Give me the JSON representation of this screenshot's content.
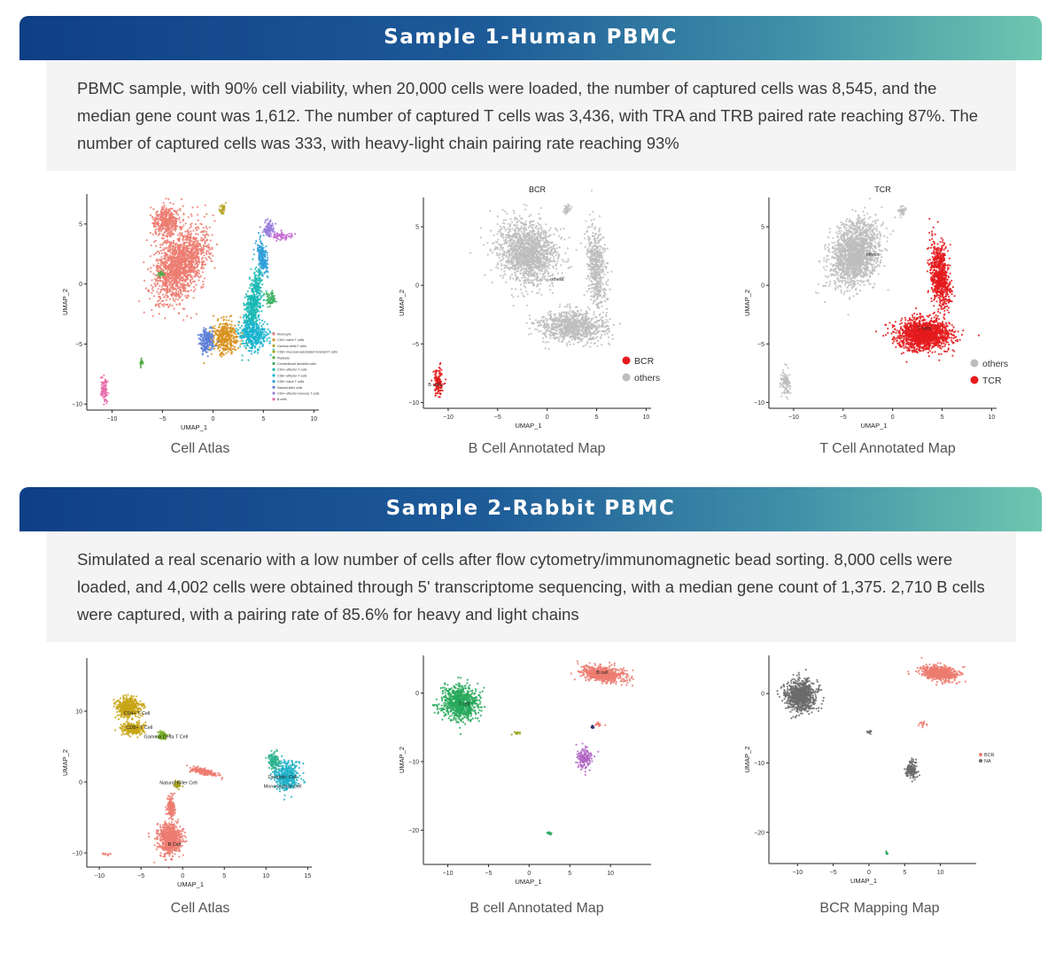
{
  "sample1": {
    "title": "Sample 1-Human PBMC",
    "description": "PBMC sample, with 90% cell viability, when 20,000 cells were loaded, the number of captured cells was 8,545, and the median gene count was 1,612. The number of captured T cells was 3,436, with TRA and TRB paired rate reaching 87%. The number of captured cells was 333, with heavy-light chain pairing rate reaching 93%"
  },
  "sample2": {
    "title": "Sample 2-Rabbit PBMC",
    "description": "Simulated a real scenario with a low number of cells after flow cytometry/immunomagnetic bead sorting. 8,000 cells were loaded, and 4,002 cells were obtained through 5' transcriptome sequencing, with a median gene count of 1,375. 2,710 B cells were captured, with a pairing rate of 85.6% for heavy and light chains"
  },
  "chart_data": [
    {
      "id": "s1-atlas",
      "type": "scatter",
      "title": "",
      "caption": "Cell Atlas",
      "xlabel": "UMAP_1",
      "ylabel": "UMAP_2",
      "xlim": [
        -12.5,
        10.5
      ],
      "ylim": [
        -10.5,
        7.5
      ],
      "xticks": [
        -10,
        -5,
        0,
        5,
        10
      ],
      "yticks": [
        -10,
        -5,
        0,
        5
      ],
      "legend_position": "right-inside",
      "legend": [
        "Monocyte",
        "CD4+ naive T cells",
        "Gamma delta T cells",
        "CD8+ mucosal-associated invariant T cells",
        "Platelets",
        "Conventional dendritic cells",
        "CD4+ effector T cells",
        "CD8+ effector T cells",
        "CD8+ naive T cells",
        "Natural killer cells",
        "CD4+ effector memory T cells",
        "B cells"
      ],
      "clusters": [
        {
          "name": "Monocyte",
          "color": "#ec7b70",
          "cx": -3.2,
          "cy": 1.6,
          "sx": 1.9,
          "sy": 3.0,
          "angle": -38,
          "n": 1500
        },
        {
          "name": "Monocyte top",
          "color": "#ec7b70",
          "cx": -4.6,
          "cy": 5.2,
          "sx": 1.2,
          "sy": 1.2,
          "angle": 0,
          "n": 400
        },
        {
          "name": "CD4+ naive T cells",
          "color": "#d8901c",
          "cx": 1.2,
          "cy": -4.4,
          "sx": 1.2,
          "sy": 1.3,
          "angle": 0,
          "n": 380
        },
        {
          "name": "Gamma delta T cells",
          "color": "#b9a72b",
          "cx": 1.0,
          "cy": 6.2,
          "sx": 0.25,
          "sy": 0.4,
          "angle": 0,
          "n": 40
        },
        {
          "name": "Platelets",
          "color": "#4ea641",
          "cx": -5.1,
          "cy": 0.8,
          "sx": 0.3,
          "sy": 0.2,
          "angle": 0,
          "n": 20
        },
        {
          "name": "CD8+ effector T cells",
          "color": "#19b8b3",
          "cx": 4.0,
          "cy": -1.6,
          "sx": 0.7,
          "sy": 2.5,
          "angle": -10,
          "n": 500
        },
        {
          "name": "CD8+ naive T cells",
          "color": "#1ab4cf",
          "cx": 4.0,
          "cy": -4.2,
          "sx": 1.3,
          "sy": 1.0,
          "angle": 0,
          "n": 380
        },
        {
          "name": "Natural killer cells",
          "color": "#2f9fd8",
          "cx": 4.9,
          "cy": 2.3,
          "sx": 0.4,
          "sy": 1.2,
          "angle": 10,
          "n": 200
        },
        {
          "name": "CD4+ effector memory T cells",
          "color": "#5c7fd6",
          "cx": -0.6,
          "cy": -4.7,
          "sx": 0.6,
          "sy": 0.9,
          "angle": 0,
          "n": 200
        },
        {
          "name": "B cells",
          "color": "#9a7ddc",
          "cx": 5.5,
          "cy": 4.6,
          "sx": 0.5,
          "sy": 0.6,
          "angle": 0,
          "n": 90
        },
        {
          "name": "B cells b",
          "color": "#c46fd2",
          "cx": 6.8,
          "cy": 4.0,
          "sx": 1.0,
          "sy": 0.3,
          "angle": 0,
          "n": 70
        },
        {
          "name": "Pink",
          "color": "#e86aa9",
          "cx": -10.8,
          "cy": -8.7,
          "sx": 0.3,
          "sy": 0.9,
          "angle": 0,
          "n": 90
        },
        {
          "name": "Green small",
          "color": "#4ea641",
          "cx": -7.1,
          "cy": -6.6,
          "sx": 0.2,
          "sy": 0.3,
          "angle": 0,
          "n": 20
        },
        {
          "name": "Green mid",
          "color": "#3bb05f",
          "cx": 5.7,
          "cy": -1.2,
          "sx": 0.4,
          "sy": 0.5,
          "angle": 0,
          "n": 60
        }
      ],
      "cluster_labels": []
    },
    {
      "id": "s1-bcr",
      "type": "scatter",
      "title": "BCR",
      "caption": "B Cell Annotated Map",
      "xlabel": "UMAP_1",
      "ylabel": "UMAP_2",
      "xlim": [
        -12.5,
        10.5
      ],
      "ylim": [
        -10.5,
        7.5
      ],
      "xticks": [
        -10,
        -5,
        0,
        5,
        10
      ],
      "yticks": [
        -10,
        -5,
        0,
        5
      ],
      "legend_position": "right",
      "legend": [
        "BCR",
        "others"
      ],
      "legend_colors": [
        "#e41a1c",
        "#bdbdbd"
      ],
      "clusters": [
        {
          "name": "others",
          "color": "#bdbdbd",
          "cx": -2.0,
          "cy": 2.8,
          "sx": 2.8,
          "sy": 2.3,
          "angle": -30,
          "n": 1500
        },
        {
          "name": "others",
          "color": "#bdbdbd",
          "cx": 2.5,
          "cy": -3.5,
          "sx": 3.0,
          "sy": 1.2,
          "angle": 0,
          "n": 900
        },
        {
          "name": "others",
          "color": "#bdbdbd",
          "cx": 5.0,
          "cy": 1.5,
          "sx": 0.8,
          "sy": 3.0,
          "angle": 5,
          "n": 500
        },
        {
          "name": "others",
          "color": "#bdbdbd",
          "cx": 2.0,
          "cy": 6.5,
          "sx": 0.3,
          "sy": 0.4,
          "angle": 0,
          "n": 40
        },
        {
          "name": "BCR",
          "color": "#e41a1c",
          "cx": -11.0,
          "cy": -8.3,
          "sx": 0.4,
          "sy": 1.0,
          "angle": 0,
          "n": 120
        }
      ],
      "cluster_labels": [
        {
          "text": "others",
          "x": 1.0,
          "y": 0.4
        },
        {
          "text": "B cells",
          "x": -11.3,
          "y": -8.6
        }
      ]
    },
    {
      "id": "s1-tcr",
      "type": "scatter",
      "title": "TCR",
      "caption": "T Cell Annotated Map",
      "xlabel": "UMAP_1",
      "ylabel": "UMAP_2",
      "xlim": [
        -12.5,
        10.5
      ],
      "ylim": [
        -10.5,
        7.5
      ],
      "xticks": [
        -10,
        -5,
        0,
        5,
        10
      ],
      "yticks": [
        -10,
        -5,
        0,
        5
      ],
      "legend_position": "right",
      "legend": [
        "others",
        "TCR"
      ],
      "legend_colors": [
        "#bdbdbd",
        "#e41a1c"
      ],
      "clusters": [
        {
          "name": "others",
          "color": "#bdbdbd",
          "cx": -3.8,
          "cy": 2.7,
          "sx": 2.0,
          "sy": 2.7,
          "angle": -35,
          "n": 1700
        },
        {
          "name": "others",
          "color": "#bdbdbd",
          "cx": -10.8,
          "cy": -8.3,
          "sx": 0.4,
          "sy": 1.0,
          "angle": 0,
          "n": 100
        },
        {
          "name": "others",
          "color": "#bdbdbd",
          "cx": 1.0,
          "cy": 6.4,
          "sx": 0.3,
          "sy": 0.4,
          "angle": 0,
          "n": 40
        },
        {
          "name": "TCR",
          "color": "#e41a1c",
          "cx": 3.2,
          "cy": -4.2,
          "sx": 2.4,
          "sy": 1.2,
          "angle": 0,
          "n": 1400
        },
        {
          "name": "TCR",
          "color": "#e41a1c",
          "cx": 4.8,
          "cy": 0.8,
          "sx": 0.9,
          "sy": 2.6,
          "angle": 8,
          "n": 700
        }
      ],
      "cluster_labels": [
        {
          "text": "others",
          "x": -2.0,
          "y": 2.5
        },
        {
          "text": "T cells",
          "x": 3.2,
          "y": -3.8
        }
      ]
    },
    {
      "id": "s2-atlas",
      "type": "scatter",
      "title": "",
      "caption": "Cell Atlas",
      "xlabel": "UMAP_1",
      "ylabel": "UMAP_2",
      "xlim": [
        -11.5,
        15.5
      ],
      "ylim": [
        -12,
        17.5
      ],
      "xticks": [
        -10,
        -5,
        0,
        5,
        10,
        15
      ],
      "yticks": [
        -10,
        0,
        10
      ],
      "legend_position": "none",
      "legend": [],
      "clusters": [
        {
          "name": "CD4 T",
          "color": "#c8a616",
          "cx": -6.5,
          "cy": 10.5,
          "sx": 1.3,
          "sy": 1.3,
          "angle": 0,
          "n": 450
        },
        {
          "name": "CD8 T",
          "color": "#c8a616",
          "cx": -6.0,
          "cy": 7.5,
          "sx": 1.2,
          "sy": 0.8,
          "angle": 0,
          "n": 260
        },
        {
          "name": "Gd T",
          "color": "#7ab02c",
          "cx": -2.5,
          "cy": 6.5,
          "sx": 0.6,
          "sy": 0.5,
          "angle": 0,
          "n": 90
        },
        {
          "name": "B cell",
          "color": "#ec7b70",
          "cx": -1.5,
          "cy": -8.0,
          "sx": 1.3,
          "sy": 2.0,
          "angle": 0,
          "n": 700
        },
        {
          "name": "B cell upper",
          "color": "#ec7b70",
          "cx": -1.4,
          "cy": -3.5,
          "sx": 0.4,
          "sy": 1.3,
          "angle": 0,
          "n": 150
        },
        {
          "name": "B cell arm",
          "color": "#ec7b70",
          "cx": 2.5,
          "cy": 1.5,
          "sx": 1.5,
          "sy": 0.4,
          "angle": -15,
          "n": 160
        },
        {
          "name": "NK",
          "color": "#a6a01c",
          "cx": -0.6,
          "cy": -0.3,
          "sx": 0.4,
          "sy": 0.5,
          "angle": 0,
          "n": 40
        },
        {
          "name": "DC Mono",
          "color": "#1fb0c8",
          "cx": 12.5,
          "cy": 0.8,
          "sx": 1.3,
          "sy": 1.7,
          "angle": 0,
          "n": 400
        },
        {
          "name": "DC Mono green",
          "color": "#2db38e",
          "cx": 11.0,
          "cy": 3.0,
          "sx": 0.6,
          "sy": 1.2,
          "angle": 0,
          "n": 110
        },
        {
          "name": "stray",
          "color": "#ec7b70",
          "cx": -9.2,
          "cy": -10.2,
          "sx": 0.6,
          "sy": 0.2,
          "angle": 0,
          "n": 10
        }
      ],
      "cluster_labels": [
        {
          "text": "CD4+ T Cell",
          "x": -5.5,
          "y": 9.5
        },
        {
          "text": "CD8+ T Cell",
          "x": -5.2,
          "y": 7.5
        },
        {
          "text": "Gamma Delta T Cell",
          "x": -2.0,
          "y": 6.2
        },
        {
          "text": "Natural Killer Cell",
          "x": -0.5,
          "y": -0.3
        },
        {
          "text": "Dendritic Cell",
          "x": 12.0,
          "y": 0.5
        },
        {
          "text": "Mononuclear Cell",
          "x": 12.0,
          "y": -0.8
        },
        {
          "text": "B Cell",
          "x": -1.0,
          "y": -9.0
        }
      ]
    },
    {
      "id": "s2-bcell",
      "type": "scatter",
      "title": "",
      "caption": "B cell Annotated Map",
      "xlabel": "UMAP_1",
      "ylabel": "UMAP_2",
      "xlim": [
        -13,
        15
      ],
      "ylim": [
        -25,
        5.5
      ],
      "xticks": [
        -10,
        -5,
        0,
        5,
        10
      ],
      "yticks": [
        -20,
        -10,
        0
      ],
      "legend_position": "none",
      "legend": [],
      "clusters": [
        {
          "name": "B cell",
          "color": "#ec7b70",
          "cx": 9.0,
          "cy": 2.8,
          "sx": 2.4,
          "sy": 1.0,
          "angle": -8,
          "n": 650
        },
        {
          "name": "Green",
          "color": "#27a85a",
          "cx": -8.5,
          "cy": -1.5,
          "sx": 2.0,
          "sy": 2.2,
          "angle": 0,
          "n": 800
        },
        {
          "name": "Purple",
          "color": "#b168c6",
          "cx": 6.8,
          "cy": -9.5,
          "sx": 0.8,
          "sy": 1.3,
          "angle": 0,
          "n": 180
        },
        {
          "name": "Small green",
          "color": "#27a85a",
          "cx": 2.5,
          "cy": -20.5,
          "sx": 0.3,
          "sy": 0.3,
          "angle": 0,
          "n": 10
        },
        {
          "name": "Olive",
          "color": "#9aa820",
          "cx": -1.5,
          "cy": -5.8,
          "sx": 0.5,
          "sy": 0.2,
          "angle": 0,
          "n": 15
        },
        {
          "name": "Small red",
          "color": "#ec7b70",
          "cx": 8.5,
          "cy": -4.6,
          "sx": 0.5,
          "sy": 0.3,
          "angle": 0,
          "n": 15
        },
        {
          "name": "Dark blue",
          "color": "#28306f",
          "cx": 7.8,
          "cy": -4.9,
          "sx": 0.2,
          "sy": 0.2,
          "angle": 0,
          "n": 10
        }
      ],
      "cluster_labels": [
        {
          "text": "B cell",
          "x": 9.0,
          "y": 2.8
        },
        {
          "text": "T cell",
          "x": -8.0,
          "y": -1.8
        }
      ]
    },
    {
      "id": "s2-bcr",
      "type": "scatter",
      "title": "",
      "caption": "BCR Mapping Map",
      "xlabel": "UMAP_1",
      "ylabel": "UMAP_2",
      "xlim": [
        -14,
        15
      ],
      "ylim": [
        -24.5,
        5.5
      ],
      "xticks": [
        -10,
        -5,
        0,
        5,
        10
      ],
      "yticks": [
        -20,
        -10,
        0
      ],
      "legend_position": "right",
      "legend": [
        "BCR",
        "NA"
      ],
      "legend_colors": [
        "#ec7b70",
        "#6b6b6b"
      ],
      "clusters": [
        {
          "name": "BCR",
          "color": "#ec7b70",
          "cx": 9.8,
          "cy": 3.0,
          "sx": 2.2,
          "sy": 0.9,
          "angle": -8,
          "n": 650
        },
        {
          "name": "NA",
          "color": "#6b6b6b",
          "cx": -9.5,
          "cy": -0.3,
          "sx": 1.9,
          "sy": 2.0,
          "angle": 0,
          "n": 800
        },
        {
          "name": "NA",
          "color": "#6b6b6b",
          "cx": 6.0,
          "cy": -11.0,
          "sx": 0.7,
          "sy": 1.2,
          "angle": 0,
          "n": 150
        },
        {
          "name": "NA",
          "color": "#6b6b6b",
          "cx": 0.0,
          "cy": -5.5,
          "sx": 0.4,
          "sy": 0.2,
          "angle": 0,
          "n": 15
        },
        {
          "name": "BCR",
          "color": "#ec7b70",
          "cx": 7.5,
          "cy": -4.5,
          "sx": 0.5,
          "sy": 0.3,
          "angle": 0,
          "n": 15
        },
        {
          "name": "Green",
          "color": "#27a85a",
          "cx": 2.5,
          "cy": -23.0,
          "sx": 0.2,
          "sy": 0.2,
          "angle": 0,
          "n": 8
        }
      ],
      "cluster_labels": []
    }
  ]
}
